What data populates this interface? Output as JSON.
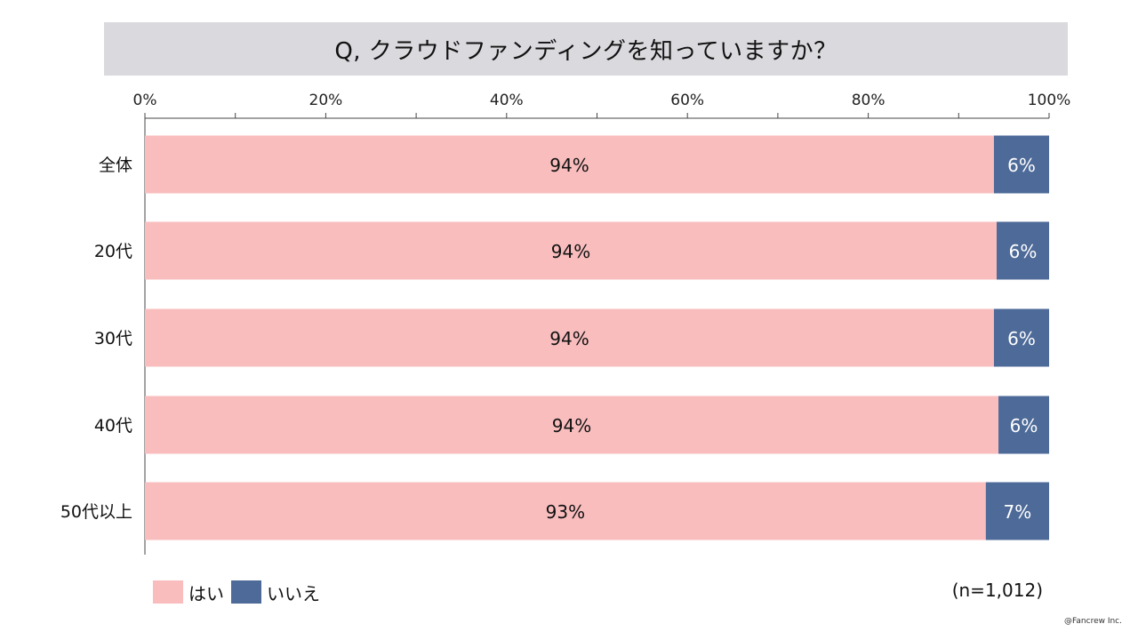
{
  "title": "Q, クラウドファンディングを知っていますか？",
  "sample_size": "(n=1,012)",
  "credit": "@Fancrew Inc.",
  "colors": {
    "yes": "#f9bdbe",
    "no": "#4d6a98",
    "title_bg": "#d9d9de"
  },
  "chart_data": {
    "type": "bar",
    "orientation": "horizontal",
    "stacked": "percent",
    "categories": [
      "全体",
      "20代",
      "30代",
      "40代",
      "50代以上"
    ],
    "series": [
      {
        "name": "はい",
        "values": [
          94,
          94,
          94,
          94,
          93
        ],
        "labels": [
          "94%",
          "94%",
          "94%",
          "94%",
          "93%"
        ],
        "fractions": [
          0.939,
          0.942,
          0.939,
          0.944,
          0.93
        ]
      },
      {
        "name": "いいえ",
        "values": [
          6,
          6,
          6,
          6,
          7
        ],
        "labels": [
          "6%",
          "6%",
          "6%",
          "6%",
          "7%"
        ],
        "fractions": [
          0.061,
          0.058,
          0.061,
          0.056,
          0.07
        ]
      }
    ],
    "xlim": [
      0,
      100
    ],
    "xticks": [
      "0%",
      "20%",
      "40%",
      "60%",
      "80%",
      "100%"
    ],
    "legend": "bottom-left",
    "grid": false
  }
}
